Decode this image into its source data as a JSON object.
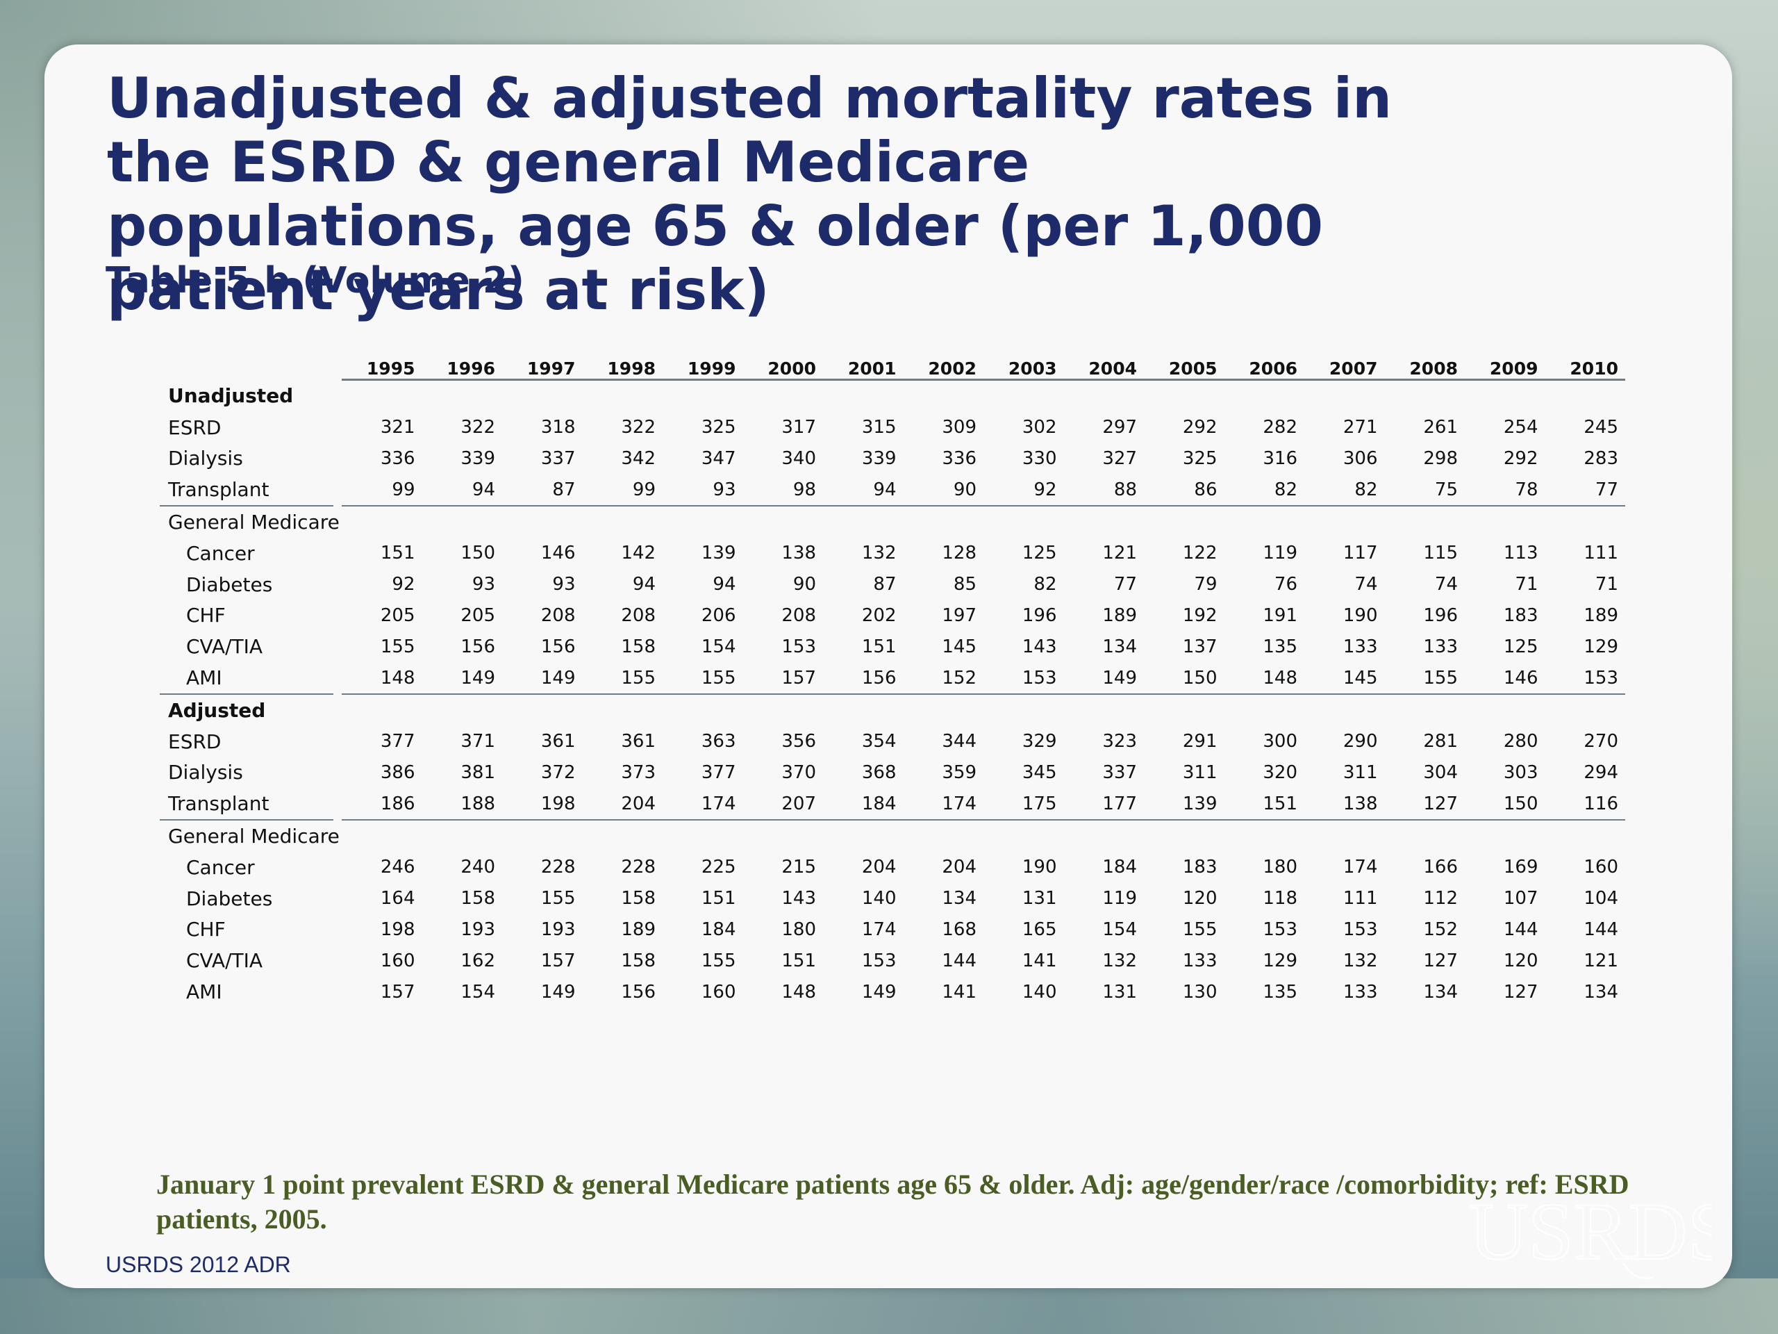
{
  "title": "Unadjusted & adjusted mortality rates in the ESRD & general Medicare populations, age 65 & older (per 1,000 patient years at risk)",
  "subtitle": "Table 5.b (Volume 2)",
  "years": [
    "1995",
    "1996",
    "1997",
    "1998",
    "1999",
    "2000",
    "2001",
    "2002",
    "2003",
    "2004",
    "2005",
    "2006",
    "2007",
    "2008",
    "2009",
    "2010"
  ],
  "sections": [
    {
      "label": "Unadjusted",
      "rows": [
        {
          "label": "ESRD",
          "values": [
            "321",
            "322",
            "318",
            "322",
            "325",
            "317",
            "315",
            "309",
            "302",
            "297",
            "292",
            "282",
            "271",
            "261",
            "254",
            "245"
          ]
        },
        {
          "label": "Dialysis",
          "values": [
            "336",
            "339",
            "337",
            "342",
            "347",
            "340",
            "339",
            "336",
            "330",
            "327",
            "325",
            "316",
            "306",
            "298",
            "292",
            "283"
          ]
        },
        {
          "label": "Transplant",
          "values": [
            "99",
            "94",
            "87",
            "99",
            "93",
            "98",
            "94",
            "90",
            "92",
            "88",
            "86",
            "82",
            "82",
            "75",
            "78",
            "77"
          ]
        }
      ],
      "subgroup": {
        "label": "General Medicare",
        "rows": [
          {
            "label": "Cancer",
            "values": [
              "151",
              "150",
              "146",
              "142",
              "139",
              "138",
              "132",
              "128",
              "125",
              "121",
              "122",
              "119",
              "117",
              "115",
              "113",
              "111"
            ]
          },
          {
            "label": "Diabetes",
            "values": [
              "92",
              "93",
              "93",
              "94",
              "94",
              "90",
              "87",
              "85",
              "82",
              "77",
              "79",
              "76",
              "74",
              "74",
              "71",
              "71"
            ]
          },
          {
            "label": "CHF",
            "values": [
              "205",
              "205",
              "208",
              "208",
              "206",
              "208",
              "202",
              "197",
              "196",
              "189",
              "192",
              "191",
              "190",
              "196",
              "183",
              "189"
            ]
          },
          {
            "label": "CVA/TIA",
            "values": [
              "155",
              "156",
              "156",
              "158",
              "154",
              "153",
              "151",
              "145",
              "143",
              "134",
              "137",
              "135",
              "133",
              "133",
              "125",
              "129"
            ]
          },
          {
            "label": "AMI",
            "values": [
              "148",
              "149",
              "149",
              "155",
              "155",
              "157",
              "156",
              "152",
              "153",
              "149",
              "150",
              "148",
              "145",
              "155",
              "146",
              "153"
            ]
          }
        ]
      }
    },
    {
      "label": "Adjusted",
      "rows": [
        {
          "label": "ESRD",
          "values": [
            "377",
            "371",
            "361",
            "361",
            "363",
            "356",
            "354",
            "344",
            "329",
            "323",
            "291",
            "300",
            "290",
            "281",
            "280",
            "270"
          ]
        },
        {
          "label": "Dialysis",
          "values": [
            "386",
            "381",
            "372",
            "373",
            "377",
            "370",
            "368",
            "359",
            "345",
            "337",
            "311",
            "320",
            "311",
            "304",
            "303",
            "294"
          ]
        },
        {
          "label": "Transplant",
          "values": [
            "186",
            "188",
            "198",
            "204",
            "174",
            "207",
            "184",
            "174",
            "175",
            "177",
            "139",
            "151",
            "138",
            "127",
            "150",
            "116"
          ]
        }
      ],
      "subgroup": {
        "label": "General Medicare",
        "rows": [
          {
            "label": "Cancer",
            "values": [
              "246",
              "240",
              "228",
              "228",
              "225",
              "215",
              "204",
              "204",
              "190",
              "184",
              "183",
              "180",
              "174",
              "166",
              "169",
              "160"
            ]
          },
          {
            "label": "Diabetes",
            "values": [
              "164",
              "158",
              "155",
              "158",
              "151",
              "143",
              "140",
              "134",
              "131",
              "119",
              "120",
              "118",
              "111",
              "112",
              "107",
              "104"
            ]
          },
          {
            "label": "CHF",
            "values": [
              "198",
              "193",
              "193",
              "189",
              "184",
              "180",
              "174",
              "168",
              "165",
              "154",
              "155",
              "153",
              "153",
              "152",
              "144",
              "144"
            ]
          },
          {
            "label": "CVA/TIA",
            "values": [
              "160",
              "162",
              "157",
              "158",
              "155",
              "151",
              "153",
              "144",
              "141",
              "132",
              "133",
              "129",
              "132",
              "127",
              "120",
              "121"
            ]
          },
          {
            "label": "AMI",
            "values": [
              "157",
              "154",
              "149",
              "156",
              "160",
              "148",
              "149",
              "141",
              "140",
              "131",
              "130",
              "135",
              "133",
              "134",
              "127",
              "134"
            ]
          }
        ]
      }
    }
  ],
  "footnote": "January 1 point prevalent ESRD & general Medicare patients age 65 & older. Adj: age/gender/race /comorbidity; ref: ESRD patients, 2005.",
  "source": "USRDS 2012 ADR",
  "logo": {
    "icon": "usrds-logo",
    "text": "USRDS"
  },
  "colors": {
    "title": "#1e2b6b",
    "footnote": "#4a5d24",
    "panel": "#f8f8f8"
  }
}
